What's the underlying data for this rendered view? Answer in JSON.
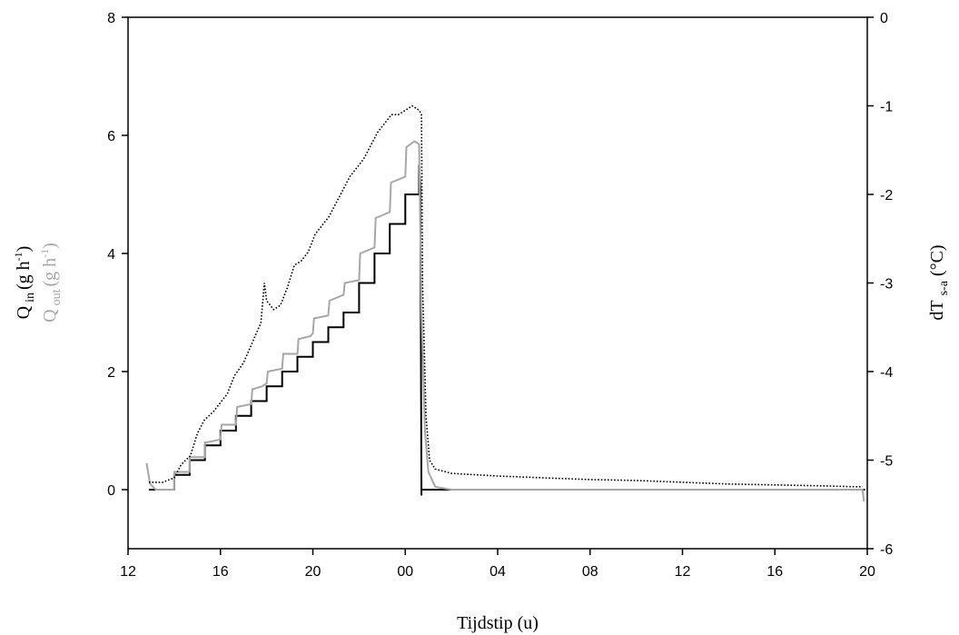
{
  "chart_data": {
    "type": "line",
    "xlabel": "Tijdstip (u)",
    "ylabel_left_1": {
      "base": "Q",
      "sub": "in",
      "rest": "(g h",
      "sup": "-1",
      "close": ")",
      "color": "#000000"
    },
    "ylabel_left_2": {
      "base": "Q",
      "sub": "out",
      "rest": "(g h",
      "sup": "-1",
      "close": ")",
      "color": "#a6a6a6"
    },
    "ylabel_right": {
      "base": "dT",
      "sub": "s-a",
      "rest": " (°C)"
    },
    "x_axis": {
      "unit": "hour",
      "range": [
        12,
        44
      ],
      "ticks": [
        12,
        16,
        20,
        24,
        28,
        32,
        36,
        40,
        44
      ],
      "tick_labels": [
        "12",
        "16",
        "20",
        "00",
        "04",
        "08",
        "12",
        "16",
        "20"
      ]
    },
    "y_left": {
      "range": [
        -1,
        8
      ],
      "ticks": [
        0,
        2,
        4,
        6,
        8
      ],
      "tick_labels": [
        "0",
        "2",
        "4",
        "6",
        "8"
      ]
    },
    "y_right": {
      "range": [
        -6,
        0
      ],
      "ticks": [
        0,
        -1,
        -2,
        -3,
        -4,
        -5,
        -6
      ],
      "tick_labels": [
        "0",
        "-1",
        "-2",
        "-3",
        "-4",
        "-5",
        "-6"
      ]
    },
    "grid": false,
    "series": [
      {
        "key": "q_in",
        "style": "solid",
        "color": "#000000",
        "axis": "left",
        "points": [
          [
            12.9,
            0
          ],
          [
            14.0,
            0
          ],
          [
            14.0,
            0.25
          ],
          [
            14.67,
            0.25
          ],
          [
            14.67,
            0.5
          ],
          [
            15.33,
            0.5
          ],
          [
            15.33,
            0.75
          ],
          [
            16.0,
            0.75
          ],
          [
            16.0,
            1.0
          ],
          [
            16.67,
            1.0
          ],
          [
            16.67,
            1.25
          ],
          [
            17.33,
            1.25
          ],
          [
            17.33,
            1.5
          ],
          [
            18.0,
            1.5
          ],
          [
            18.0,
            1.75
          ],
          [
            18.67,
            1.75
          ],
          [
            18.67,
            2.0
          ],
          [
            19.33,
            2.0
          ],
          [
            19.33,
            2.25
          ],
          [
            20.0,
            2.25
          ],
          [
            20.0,
            2.5
          ],
          [
            20.67,
            2.5
          ],
          [
            20.67,
            2.75
          ],
          [
            21.33,
            2.75
          ],
          [
            21.33,
            3.0
          ],
          [
            22.0,
            3.0
          ],
          [
            22.0,
            3.5
          ],
          [
            22.67,
            3.5
          ],
          [
            22.67,
            4.0
          ],
          [
            23.33,
            4.0
          ],
          [
            23.33,
            4.5
          ],
          [
            24.0,
            4.5
          ],
          [
            24.0,
            5.0
          ],
          [
            24.6,
            5.0
          ],
          [
            24.6,
            5.5
          ],
          [
            24.65,
            5.1
          ],
          [
            24.7,
            -0.1
          ],
          [
            24.7,
            0
          ],
          [
            43.9,
            0
          ]
        ]
      },
      {
        "key": "q_out",
        "style": "solid",
        "color": "#a6a6a6",
        "axis": "left",
        "points": [
          [
            12.8,
            0.45
          ],
          [
            12.95,
            0.1
          ],
          [
            13.2,
            0.0
          ],
          [
            14.0,
            0.0
          ],
          [
            14.0,
            0.3
          ],
          [
            14.67,
            0.3
          ],
          [
            14.67,
            0.55
          ],
          [
            15.33,
            0.55
          ],
          [
            15.33,
            0.8
          ],
          [
            15.4,
            0.8
          ],
          [
            16.0,
            0.85
          ],
          [
            16.05,
            1.1
          ],
          [
            16.67,
            1.1
          ],
          [
            16.72,
            1.4
          ],
          [
            17.33,
            1.45
          ],
          [
            17.38,
            1.7
          ],
          [
            17.8,
            1.75
          ],
          [
            18.0,
            1.8
          ],
          [
            18.05,
            2.0
          ],
          [
            18.67,
            2.05
          ],
          [
            18.72,
            2.3
          ],
          [
            19.33,
            2.3
          ],
          [
            19.38,
            2.55
          ],
          [
            19.9,
            2.6
          ],
          [
            20.0,
            2.65
          ],
          [
            20.05,
            2.9
          ],
          [
            20.67,
            2.95
          ],
          [
            20.72,
            3.2
          ],
          [
            21.33,
            3.3
          ],
          [
            21.38,
            3.5
          ],
          [
            22.0,
            3.55
          ],
          [
            22.05,
            4.0
          ],
          [
            22.67,
            4.1
          ],
          [
            22.72,
            4.6
          ],
          [
            23.33,
            4.7
          ],
          [
            23.38,
            5.2
          ],
          [
            24.0,
            5.3
          ],
          [
            24.05,
            5.8
          ],
          [
            24.4,
            5.9
          ],
          [
            24.6,
            5.85
          ],
          [
            24.7,
            3.0
          ],
          [
            24.85,
            1.0
          ],
          [
            25.0,
            0.3
          ],
          [
            25.3,
            0.05
          ],
          [
            26.0,
            0.0
          ],
          [
            43.8,
            0.0
          ],
          [
            43.85,
            -0.2
          ]
        ]
      },
      {
        "key": "dT",
        "style": "dotted",
        "color": "#000000",
        "axis": "right",
        "points": [
          [
            12.9,
            -5.25
          ],
          [
            13.5,
            -5.25
          ],
          [
            14.0,
            -5.2
          ],
          [
            14.3,
            -5.05
          ],
          [
            14.7,
            -4.95
          ],
          [
            15.0,
            -4.7
          ],
          [
            15.3,
            -4.55
          ],
          [
            15.7,
            -4.45
          ],
          [
            16.0,
            -4.35
          ],
          [
            16.3,
            -4.25
          ],
          [
            16.6,
            -4.05
          ],
          [
            17.0,
            -3.9
          ],
          [
            17.5,
            -3.6
          ],
          [
            17.75,
            -3.45
          ],
          [
            17.9,
            -3.0
          ],
          [
            18.0,
            -3.2
          ],
          [
            18.3,
            -3.3
          ],
          [
            18.6,
            -3.25
          ],
          [
            18.9,
            -3.05
          ],
          [
            19.2,
            -2.8
          ],
          [
            19.5,
            -2.75
          ],
          [
            19.8,
            -2.65
          ],
          [
            20.1,
            -2.45
          ],
          [
            20.4,
            -2.35
          ],
          [
            20.7,
            -2.25
          ],
          [
            21.0,
            -2.1
          ],
          [
            21.3,
            -1.95
          ],
          [
            21.6,
            -1.8
          ],
          [
            21.9,
            -1.7
          ],
          [
            22.2,
            -1.6
          ],
          [
            22.5,
            -1.45
          ],
          [
            22.8,
            -1.3
          ],
          [
            23.1,
            -1.2
          ],
          [
            23.4,
            -1.1
          ],
          [
            23.7,
            -1.1
          ],
          [
            24.0,
            -1.05
          ],
          [
            24.3,
            -1.0
          ],
          [
            24.6,
            -1.05
          ],
          [
            24.7,
            -1.1
          ],
          [
            24.75,
            -3.0
          ],
          [
            24.9,
            -4.5
          ],
          [
            25.05,
            -5.0
          ],
          [
            25.3,
            -5.1
          ],
          [
            26.0,
            -5.15
          ],
          [
            28.0,
            -5.18
          ],
          [
            30.0,
            -5.2
          ],
          [
            32.0,
            -5.22
          ],
          [
            34.0,
            -5.23
          ],
          [
            36.0,
            -5.25
          ],
          [
            38.0,
            -5.27
          ],
          [
            40.0,
            -5.28
          ],
          [
            42.0,
            -5.29
          ],
          [
            43.5,
            -5.3
          ],
          [
            43.8,
            -5.3
          ]
        ]
      }
    ]
  }
}
